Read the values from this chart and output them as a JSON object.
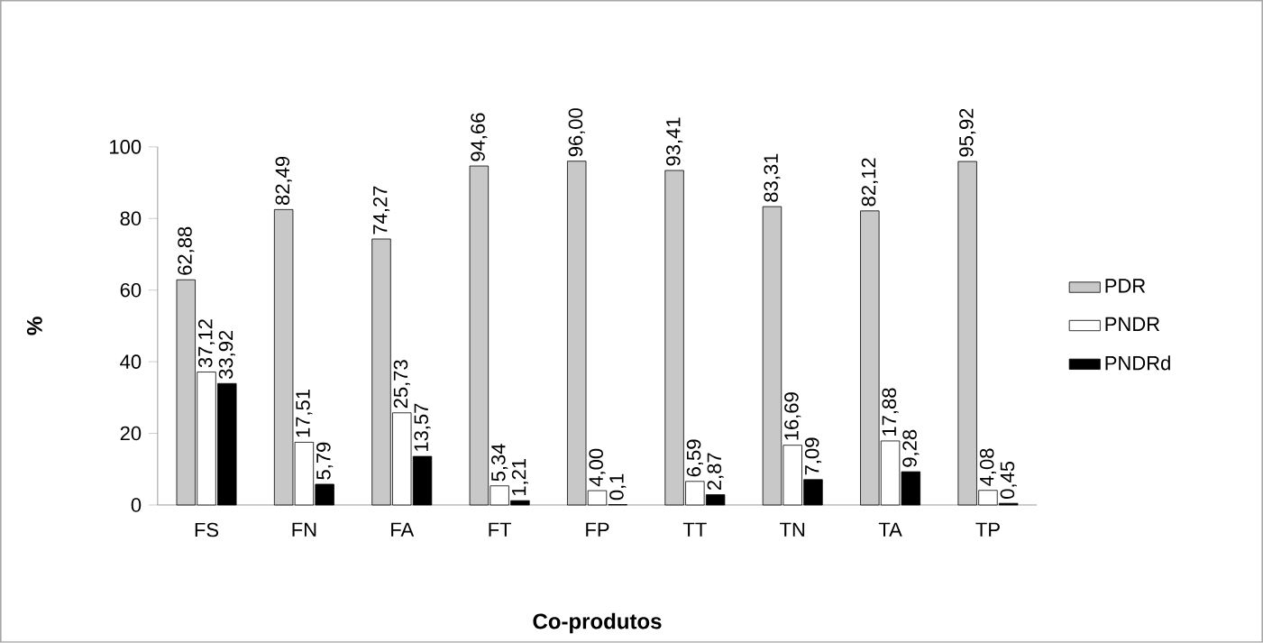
{
  "chart_data": {
    "type": "bar",
    "xlabel": "Co-produtos",
    "ylabel": "%",
    "categories": [
      "FS",
      "FN",
      "FA",
      "FT",
      "FP",
      "TT",
      "TN",
      "TA",
      "TP"
    ],
    "series": [
      {
        "name": "PDR",
        "color": "#c8c8c8",
        "values": [
          62.88,
          82.49,
          74.27,
          94.66,
          96.0,
          93.41,
          83.31,
          82.12,
          95.92
        ],
        "value_labels": [
          "62,88",
          "82,49",
          "74,27",
          "94,66",
          "96,00",
          "93,41",
          "83,31",
          "82,12",
          "95,92"
        ]
      },
      {
        "name": "PNDR",
        "color": "#ffffff",
        "values": [
          37.12,
          17.51,
          25.73,
          5.34,
          4.0,
          6.59,
          16.69,
          17.88,
          4.08
        ],
        "value_labels": [
          "37,12",
          "17,51",
          "25,73",
          "5,34",
          "4,00",
          "6,59",
          "16,69",
          "17,88",
          "4,08"
        ]
      },
      {
        "name": "PNDRd",
        "color": "#000000",
        "values": [
          33.92,
          5.79,
          13.57,
          1.21,
          0.1,
          2.87,
          7.09,
          9.28,
          0.45
        ],
        "value_labels": [
          "33,92",
          "5,79",
          "13,57",
          "1,21",
          "0,1",
          "2,87",
          "7,09",
          "9,28",
          "0,45"
        ]
      }
    ],
    "ylim": [
      0,
      100
    ],
    "yticks": [
      0,
      20,
      40,
      60,
      80,
      100
    ],
    "legend": "right"
  }
}
